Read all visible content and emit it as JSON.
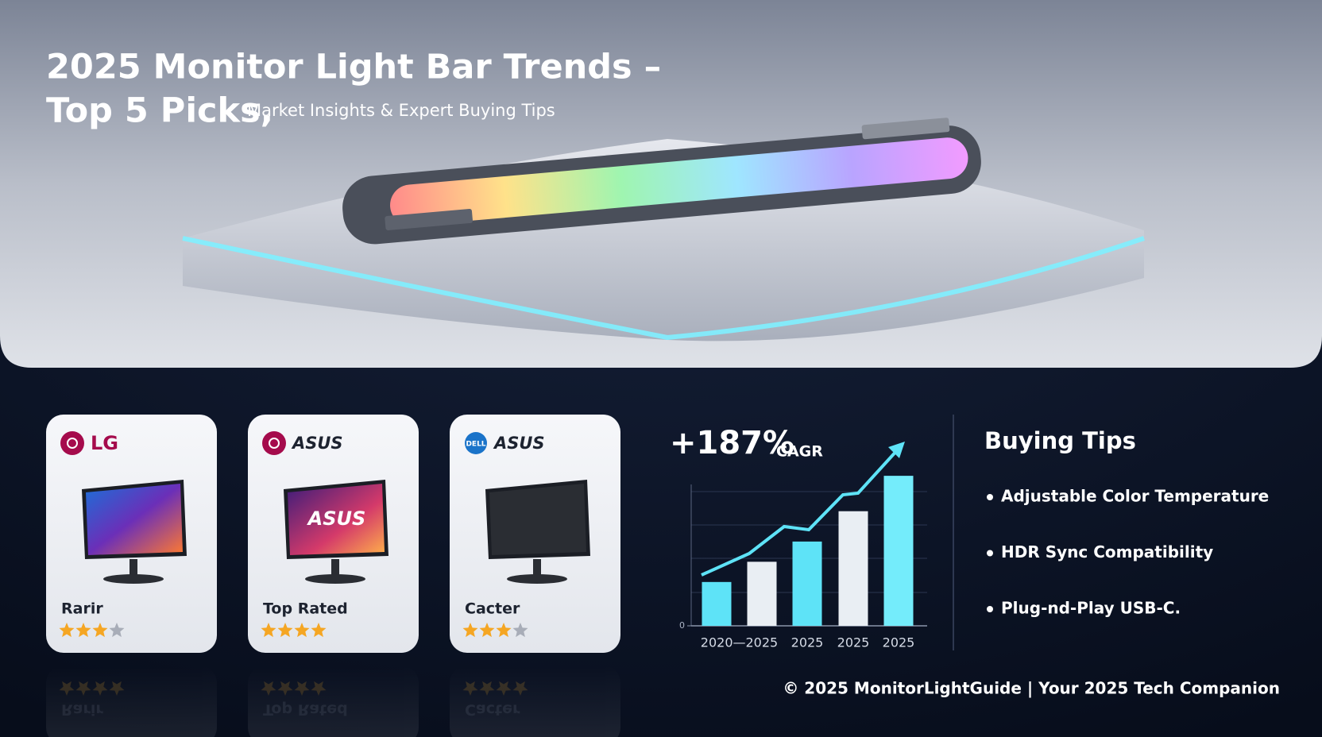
{
  "header": {
    "title_line1": "2025 Monitor Light Bar Trends –",
    "title_line2": "Top 5 Picks,",
    "subtitle": "Market Insights & Expert Buying Tips"
  },
  "cards": [
    {
      "brand": "LG",
      "label": "Rarir",
      "rating": 3,
      "rating_max": 4
    },
    {
      "brand": "ASUS",
      "screen_text": "ASUS",
      "label": "Top Rated",
      "rating": 4,
      "rating_max": 4
    },
    {
      "badge": "DELL",
      "brand": "ASUS",
      "label": "Cacter",
      "rating": 3,
      "rating_max": 4
    }
  ],
  "chart_data": {
    "type": "bar",
    "headline": "+187%",
    "headline_note": "CAGR",
    "categories": [
      "2020—2025",
      null,
      "2025",
      "2025",
      "2025"
    ],
    "values": [
      1.3,
      1.9,
      2.5,
      3.4,
      4.45
    ],
    "colors": [
      "#5ee3f7",
      "#e9eef3",
      "#5ee3f7",
      "#e9eef3",
      "#74ecfb"
    ],
    "ylim": [
      0,
      4.5
    ],
    "yticks": [
      0
    ]
  },
  "tips": {
    "title": "Buying Tips",
    "items": [
      "Adjustable Color Temperature",
      "HDR Sync Compatibility",
      "Plug-nd-Play USB-C."
    ]
  },
  "footer": "© 2025 MonitorLightGuide | Your 2025 Tech Companion"
}
